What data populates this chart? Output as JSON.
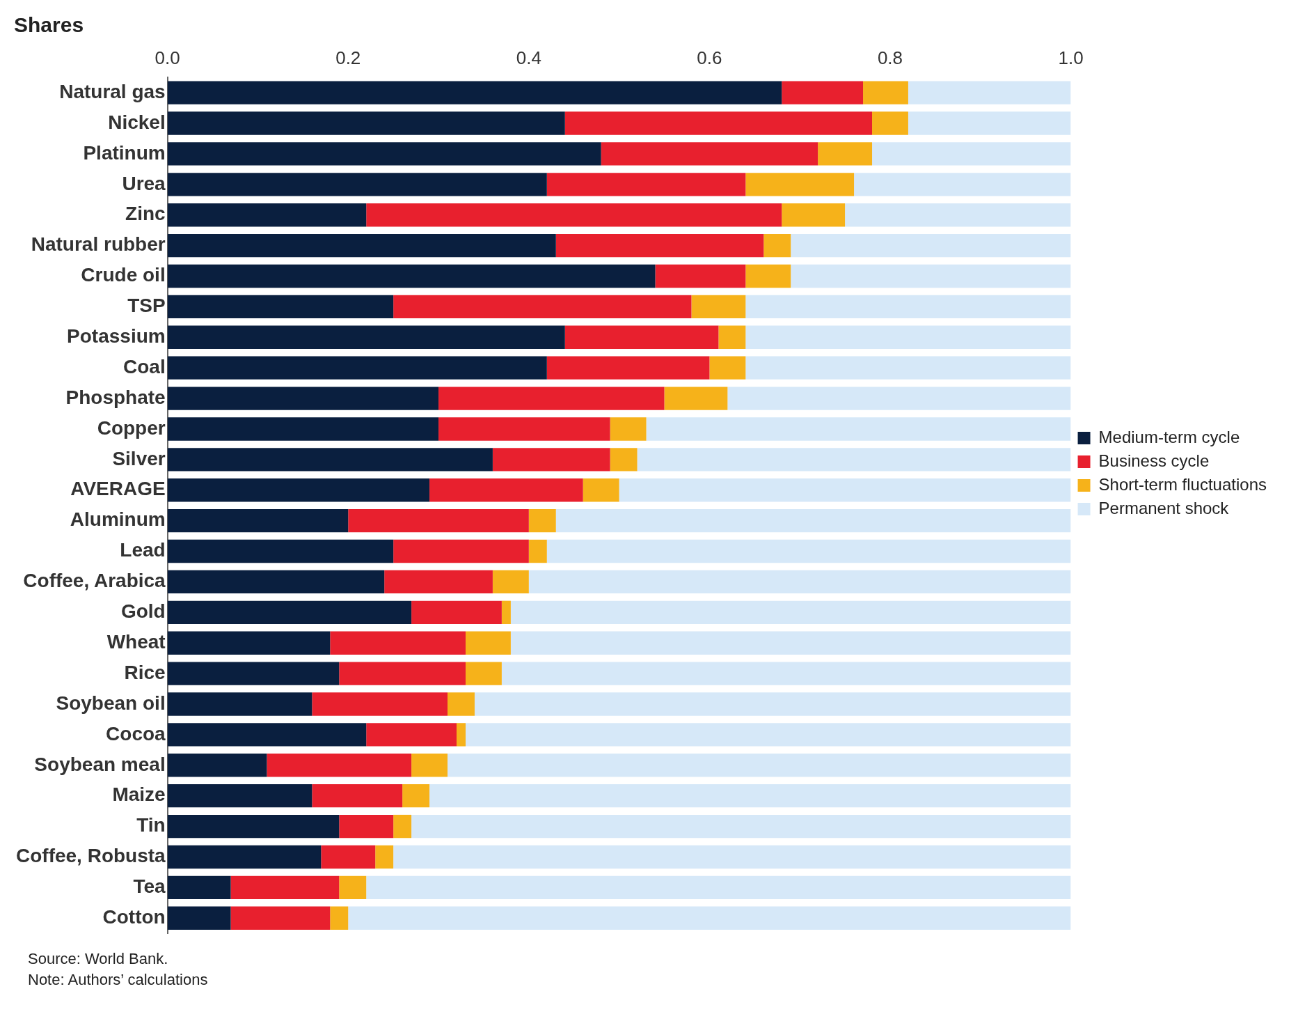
{
  "chart_data": {
    "type": "bar",
    "orientation": "horizontal",
    "stacked": true,
    "title": "Shares",
    "legend": "right",
    "grid": false,
    "categories": [
      "Natural gas",
      "Nickel",
      "Platinum",
      "Urea",
      "Zinc",
      "Natural rubber",
      "Crude oil",
      "TSP",
      "Potassium",
      "Coal",
      "Phosphate",
      "Copper",
      "Silver",
      "AVERAGE",
      "Aluminum",
      "Lead",
      "Coffee, Arabica",
      "Gold",
      "Wheat",
      "Rice",
      "Soybean oil",
      "Cocoa",
      "Soybean meal",
      "Maize",
      "Tin",
      "Coffee, Robusta",
      "Tea",
      "Cotton"
    ],
    "xlim": [
      0,
      1
    ],
    "xticks": [
      {
        "value": 0,
        "label": "0.0"
      },
      0.2,
      0.4,
      0.6,
      0.8,
      {
        "value": 1,
        "label": "1.0"
      }
    ],
    "series": [
      {
        "name": "Medium-term cycle",
        "color": "#0a1f3f",
        "values": [
          0.68,
          0.44,
          0.48,
          0.42,
          0.22,
          0.43,
          0.54,
          0.25,
          0.44,
          0.42,
          0.3,
          0.3,
          0.36,
          0.29,
          0.2,
          0.25,
          0.24,
          0.27,
          0.18,
          0.19,
          0.16,
          0.22,
          0.11,
          0.16,
          0.19,
          0.17,
          0.07,
          0.07
        ]
      },
      {
        "name": "Business cycle",
        "color": "#e8202e",
        "values": [
          0.09,
          0.34,
          0.24,
          0.22,
          0.46,
          0.23,
          0.1,
          0.33,
          0.17,
          0.18,
          0.25,
          0.19,
          0.13,
          0.17,
          0.2,
          0.15,
          0.12,
          0.1,
          0.15,
          0.14,
          0.15,
          0.1,
          0.16,
          0.1,
          0.06,
          0.06,
          0.12,
          0.11
        ]
      },
      {
        "name": "Short-term fluctuations",
        "color": "#f6b21a",
        "values": [
          0.05,
          0.04,
          0.06,
          0.12,
          0.07,
          0.03,
          0.05,
          0.06,
          0.03,
          0.04,
          0.07,
          0.04,
          0.03,
          0.04,
          0.03,
          0.02,
          0.04,
          0.01,
          0.05,
          0.04,
          0.03,
          0.01,
          0.04,
          0.03,
          0.02,
          0.02,
          0.03,
          0.02
        ]
      },
      {
        "name": "Permanent shock",
        "color": "#d6e8f8",
        "values": [
          0.18,
          0.18,
          0.22,
          0.24,
          0.25,
          0.31,
          0.31,
          0.36,
          0.36,
          0.36,
          0.38,
          0.47,
          0.48,
          0.5,
          0.57,
          0.58,
          0.6,
          0.62,
          0.62,
          0.63,
          0.66,
          0.67,
          0.69,
          0.71,
          0.73,
          0.75,
          0.78,
          0.8
        ]
      }
    ],
    "annotations": [
      "Source: World Bank.",
      "Note: Authors’ calculations"
    ]
  }
}
